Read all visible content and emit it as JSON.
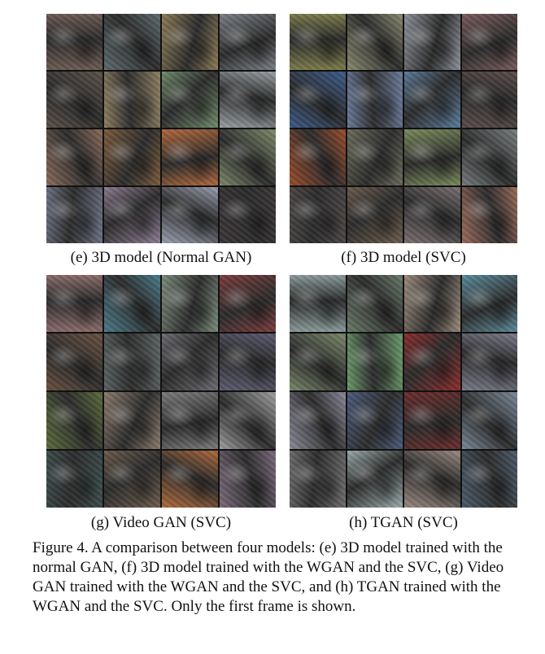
{
  "panels": [
    {
      "id": "e",
      "caption": "(e) 3D model (Normal GAN)",
      "tiles": [
        "#6b5a52",
        "#5d6a6e",
        "#8a7a55",
        "#7a7f86",
        "#5a5048",
        "#8c7d60",
        "#6f8a6a",
        "#9aa0a4",
        "#8a6a5a",
        "#7a5a3a",
        "#b0663a",
        "#7e8a6a",
        "#6a6e80",
        "#8a7a90",
        "#9aa0b0",
        "#3a3436"
      ]
    },
    {
      "id": "f",
      "caption": "(f) 3D model (SVC)",
      "tiles": [
        "#7a7a4a",
        "#8a8a70",
        "#8c9098",
        "#7a5a5c",
        "#3a5a8a",
        "#6a7a9a",
        "#5a7a9a",
        "#5a4a4a",
        "#9a4a2a",
        "#6a6a5a",
        "#7a8a5a",
        "#7a7e80",
        "#4a4444",
        "#6a5a4a",
        "#7a7070",
        "#9a6a5a"
      ]
    },
    {
      "id": "g",
      "caption": "(g) Video GAN (SVC)",
      "tiles": [
        "#8a6a6a",
        "#4a7a8a",
        "#7a8a7a",
        "#7a3a3a",
        "#6a5040",
        "#5a6060",
        "#6a6a70",
        "#5a5a70",
        "#5a6a3a",
        "#8a7a6a",
        "#7a7a7a",
        "#a0a0a0",
        "#3a4a4a",
        "#6a5a4a",
        "#b06a3a",
        "#7a6a7a"
      ]
    },
    {
      "id": "h",
      "caption": "(h) TGAN (SVC)",
      "tiles": [
        "#8a9a9a",
        "#6a7a6a",
        "#9a8a7a",
        "#5a8a9a",
        "#7a8a6a",
        "#6a9a6a",
        "#8a2a2a",
        "#7a7a8a",
        "#8a8a9a",
        "#4a5a7a",
        "#6a2a2a",
        "#7a8a9a",
        "#6a6a6a",
        "#9aaaaa",
        "#9a8a80",
        "#4a5a6a"
      ]
    }
  ],
  "figure_caption": "Figure 4. A comparison between four models: (e) 3D model trained with the normal GAN, (f) 3D model trained with the WGAN and the SVC, (g) Video GAN trained with the WGAN and the SVC, and (h) TGAN trained with the WGAN and the SVC. Only the first frame is shown."
}
